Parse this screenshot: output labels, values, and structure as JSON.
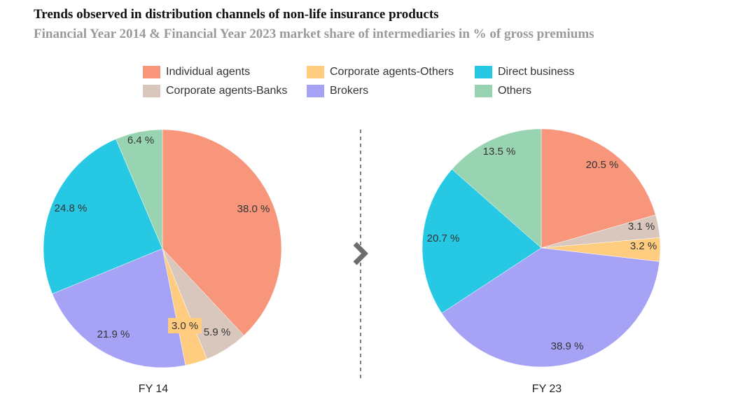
{
  "title": "Trends observed in distribution channels of non-life insurance products",
  "subtitle": "Financial Year 2014 & Financial Year 2023 market share of intermediaries in % of gross premiums",
  "legend": [
    {
      "label": "Individual agents",
      "color": "#F7967A"
    },
    {
      "label": "Corporate agents-Others",
      "color": "#FFCC80"
    },
    {
      "label": "Direct business",
      "color": "#26C8E3"
    },
    {
      "label": "Corporate agents-Banks",
      "color": "#D9C7BE"
    },
    {
      "label": "Brokers",
      "color": "#A6A3F7"
    },
    {
      "label": "Others",
      "color": "#98D4B2"
    }
  ],
  "arrow_icon": "chevron-right-icon",
  "chart_data": [
    {
      "type": "pie",
      "caption": "FY 14",
      "slices": [
        {
          "label": "Individual agents",
          "value": 38.0,
          "text": "38.0 %",
          "color": "#F7967A"
        },
        {
          "label": "Corporate agents-Banks",
          "value": 5.9,
          "text": "5.9 %",
          "color": "#D9C7BE"
        },
        {
          "label": "Corporate agents-Others",
          "value": 3.0,
          "text": "3.0 %",
          "color": "#FFCC80"
        },
        {
          "label": "Brokers",
          "value": 21.9,
          "text": "21.9 %",
          "color": "#A6A3F7"
        },
        {
          "label": "Direct business",
          "value": 24.8,
          "text": "24.8 %",
          "color": "#26C8E3"
        },
        {
          "label": "Others",
          "value": 6.4,
          "text": "6.4 %",
          "color": "#98D4B2"
        }
      ]
    },
    {
      "type": "pie",
      "caption": "FY 23",
      "slices": [
        {
          "label": "Individual agents",
          "value": 20.5,
          "text": "20.5 %",
          "color": "#F7967A"
        },
        {
          "label": "Corporate agents-Banks",
          "value": 3.1,
          "text": "3.1 %",
          "color": "#D9C7BE"
        },
        {
          "label": "Corporate agents-Others",
          "value": 3.2,
          "text": "3.2 %",
          "color": "#FFCC80"
        },
        {
          "label": "Brokers",
          "value": 38.9,
          "text": "38.9 %",
          "color": "#A6A3F7"
        },
        {
          "label": "Direct business",
          "value": 20.7,
          "text": "20.7 %",
          "color": "#26C8E3"
        },
        {
          "label": "Others",
          "value": 13.5,
          "text": "13.5 %",
          "color": "#98D4B2"
        }
      ]
    }
  ]
}
